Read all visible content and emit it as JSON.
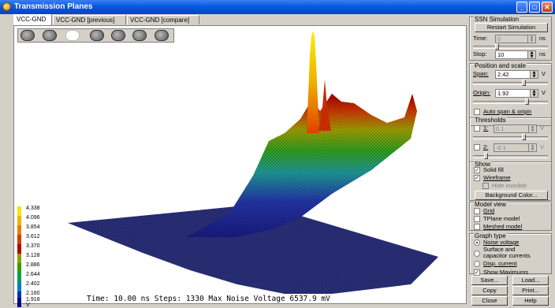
{
  "window": {
    "title": "Transmission Planes"
  },
  "tabs": [
    {
      "label": "VCC-GND",
      "active": true
    },
    {
      "label": "VCC-GND [previous]",
      "active": false
    },
    {
      "label": "VCC-GND [compare]",
      "active": false
    }
  ],
  "toolbar": {
    "icons": [
      "zoom-in-icon",
      "zoom-out-icon",
      "blank-icon",
      "pan-icon",
      "rotate-icon",
      "stop-icon",
      "fit-icon"
    ]
  },
  "legend": {
    "unit": "V",
    "levels": [
      {
        "label": "4.338",
        "color": "#f5e600"
      },
      {
        "label": "4.096",
        "color": "#f0b400"
      },
      {
        "label": "3.854",
        "color": "#e88000"
      },
      {
        "label": "3.612",
        "color": "#d83c00"
      },
      {
        "label": "3.370",
        "color": "#b40000"
      },
      {
        "label": "3.128",
        "color": "#8ca000"
      },
      {
        "label": "2.886",
        "color": "#2ea000"
      },
      {
        "label": "2.644",
        "color": "#00a050"
      },
      {
        "label": "2.402",
        "color": "#0080c0"
      },
      {
        "label": "2.160",
        "color": "#0030c0"
      },
      {
        "label": "1.918 V",
        "color": "#000090"
      }
    ]
  },
  "status": "Time: 10.00 ns Steps: 1330  Max Noise Voltage 6537.9 mV",
  "panel": {
    "ssn": {
      "title": "SSN Simulation",
      "restart_label": "Restart Simulation",
      "time_label": "Time:",
      "time_value": "0",
      "time_unit": "ns",
      "stop_label": "Stop:",
      "stop_value": "10",
      "stop_unit": "ns"
    },
    "position": {
      "title": "Position and scale",
      "span_label": "Span:",
      "span_value": "2.42",
      "span_unit": "V",
      "origin_label": "Origin:",
      "origin_value": "1.92",
      "origin_unit": "V",
      "auto_label": "Auto span & origin",
      "auto_checked": false
    },
    "thresholds": {
      "title": "Thresholds",
      "t1_label": "1:",
      "t1_value": "0.1",
      "t1_unit": "V",
      "t2_label": "2:",
      "t2_value": "-0.1",
      "t2_unit": "V"
    },
    "show": {
      "title": "Show",
      "solid_label": "Solid fill",
      "solid_checked": true,
      "wire_label": "Wireframe",
      "wire_checked": true,
      "hide_label": "Hide invisible",
      "hide_checked": false,
      "bg_label": "Background Color..."
    },
    "model": {
      "title": "Model view",
      "grid_label": "Grid",
      "tplane_label": "TPlane model",
      "meshed_label": "Meshed model"
    },
    "graph": {
      "title": "Graph type",
      "noise_label": "Noise voltage",
      "surface_label1": "Surface and",
      "surface_label2": "capacitor currents",
      "disp_label": "Disp. current",
      "selected": "Noise voltage",
      "showmax_label": "Show Maximums",
      "showmax_checked": true
    },
    "buttons": {
      "save": "Save...",
      "load": "Load...",
      "copy": "Copy",
      "print": "Print...",
      "close": "Close",
      "help": "Help"
    }
  }
}
